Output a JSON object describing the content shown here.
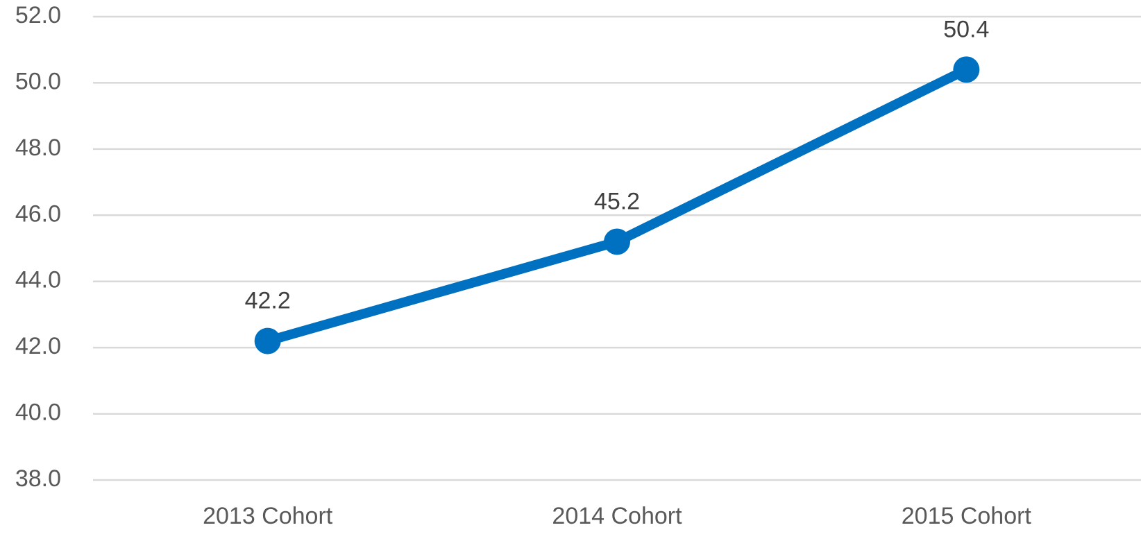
{
  "chart_data": {
    "type": "line",
    "categories": [
      "2013 Cohort",
      "2014 Cohort",
      "2015 Cohort"
    ],
    "series": [
      {
        "name": "Series 1",
        "color": "#0070c0",
        "values": [
          42.2,
          45.2,
          50.4
        ]
      }
    ],
    "ylim": [
      38,
      52
    ],
    "yticks": [
      {
        "value": 38,
        "label": "38.0"
      },
      {
        "value": 40,
        "label": "40.0"
      },
      {
        "value": 42,
        "label": "42.0"
      },
      {
        "value": 44,
        "label": "44.0"
      },
      {
        "value": 46,
        "label": "46.0"
      },
      {
        "value": 48,
        "label": "48.0"
      },
      {
        "value": 50,
        "label": "50.0"
      },
      {
        "value": 52,
        "label": "52.0"
      }
    ],
    "grid": true
  }
}
